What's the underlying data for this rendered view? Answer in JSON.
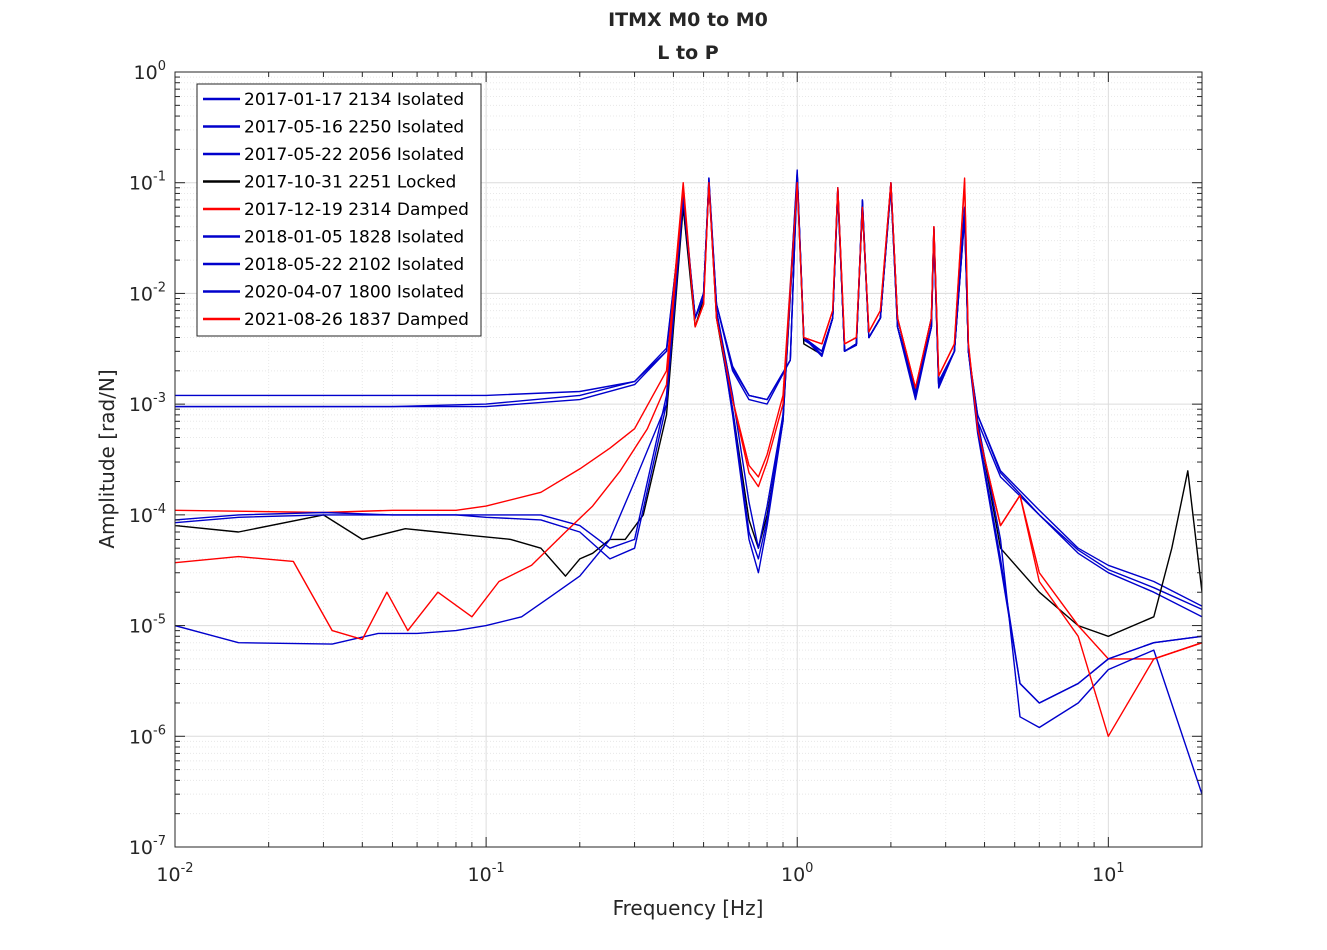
{
  "chart_data": {
    "type": "line",
    "title": "ITMX M0 to M0",
    "subtitle": "L to P",
    "xlabel": "Frequency [Hz]",
    "ylabel": "Amplitude [rad/N]",
    "xscale": "log",
    "yscale": "log",
    "xlim": [
      0.01,
      20
    ],
    "ylim": [
      1e-07,
      1
    ],
    "grid": true,
    "legend_position": "top-left",
    "x_ticks": [
      {
        "base": "10",
        "exp": "-2",
        "value": 0.01
      },
      {
        "base": "10",
        "exp": "-1",
        "value": 0.1
      },
      {
        "base": "10",
        "exp": "0",
        "value": 1
      },
      {
        "base": "10",
        "exp": "1",
        "value": 10
      }
    ],
    "y_ticks": [
      {
        "base": "10",
        "exp": "0",
        "value": 1
      },
      {
        "base": "10",
        "exp": "-1",
        "value": 0.1
      },
      {
        "base": "10",
        "exp": "-2",
        "value": 0.01
      },
      {
        "base": "10",
        "exp": "-3",
        "value": 0.001
      },
      {
        "base": "10",
        "exp": "-4",
        "value": 0.0001
      },
      {
        "base": "10",
        "exp": "-5",
        "value": 1e-05
      },
      {
        "base": "10",
        "exp": "-6",
        "value": 1e-06
      },
      {
        "base": "10",
        "exp": "-7",
        "value": 1e-07
      }
    ],
    "series": [
      {
        "name": "2017-01-17 2134 Isolated",
        "color": "#0000cc",
        "x": [
          0.01,
          0.05,
          0.1,
          0.2,
          0.3,
          0.38,
          0.43,
          0.47,
          0.5,
          0.52,
          0.55,
          0.62,
          0.7,
          0.8,
          0.95,
          1.0,
          1.05,
          1.2,
          1.3,
          1.35,
          1.42,
          1.55,
          1.62,
          1.7,
          1.85,
          2.0,
          2.1,
          2.4,
          2.7,
          2.75,
          2.85,
          3.2,
          3.45,
          3.55,
          3.8,
          4.5,
          6,
          8,
          10,
          14,
          20
        ],
        "y": [
          0.0012,
          0.0012,
          0.0012,
          0.0013,
          0.0016,
          0.003,
          0.06,
          0.006,
          0.01,
          0.1,
          0.008,
          0.0022,
          0.0012,
          0.0011,
          0.0025,
          0.12,
          0.004,
          0.0028,
          0.006,
          0.09,
          0.003,
          0.0035,
          0.07,
          0.004,
          0.006,
          0.1,
          0.006,
          0.00135,
          0.006,
          0.04,
          0.0015,
          0.003,
          0.06,
          0.003,
          0.0008,
          0.00025,
          0.00011,
          5e-05,
          3.5e-05,
          2.5e-05,
          1.5e-05
        ]
      },
      {
        "name": "2017-05-16 2250 Isolated",
        "color": "#0000cc",
        "x": [
          0.01,
          0.05,
          0.1,
          0.2,
          0.3,
          0.38,
          0.43,
          0.47,
          0.5,
          0.52,
          0.55,
          0.62,
          0.7,
          0.8,
          0.95,
          1.0,
          1.05,
          1.2,
          1.3,
          1.35,
          1.42,
          1.55,
          1.62,
          1.7,
          1.85,
          2.0,
          2.1,
          2.4,
          2.7,
          2.75,
          2.85,
          3.2,
          3.45,
          3.55,
          3.8,
          4.5,
          6,
          8,
          10,
          14,
          20
        ],
        "y": [
          0.00095,
          0.00095,
          0.00095,
          0.0011,
          0.0015,
          0.003,
          0.07,
          0.006,
          0.01,
          0.11,
          0.008,
          0.002,
          0.0011,
          0.001,
          0.0025,
          0.12,
          0.0038,
          0.003,
          0.006,
          0.085,
          0.003,
          0.0035,
          0.065,
          0.004,
          0.006,
          0.095,
          0.006,
          0.0012,
          0.006,
          0.035,
          0.0015,
          0.003,
          0.055,
          0.003,
          0.0007,
          0.00022,
          0.0001,
          4.5e-05,
          3e-05,
          2e-05,
          1.2e-05
        ]
      },
      {
        "name": "2017-05-22 2056 Isolated",
        "color": "#0000cc",
        "x": [
          0.01,
          0.05,
          0.1,
          0.2,
          0.3,
          0.38,
          0.43,
          0.47,
          0.5,
          0.52,
          0.55,
          0.62,
          0.7,
          0.8,
          0.95,
          1.0,
          1.05,
          1.2,
          1.3,
          1.35,
          1.42,
          1.55,
          1.62,
          1.7,
          1.85,
          2.0,
          2.1,
          2.4,
          2.7,
          2.75,
          2.85,
          3.2,
          3.45,
          3.55,
          3.8,
          4.5,
          6,
          8,
          10,
          14,
          20
        ],
        "y": [
          0.00095,
          0.00095,
          0.001,
          0.0012,
          0.0016,
          0.0032,
          0.065,
          0.006,
          0.01,
          0.1,
          0.008,
          0.0021,
          0.0012,
          0.0011,
          0.0025,
          0.115,
          0.004,
          0.003,
          0.006,
          0.088,
          0.003,
          0.0035,
          0.068,
          0.004,
          0.006,
          0.098,
          0.006,
          0.0013,
          0.006,
          0.038,
          0.0015,
          0.003,
          0.058,
          0.003,
          0.0008,
          0.00024,
          0.0001,
          4.8e-05,
          3.2e-05,
          2.2e-05,
          1.4e-05
        ]
      },
      {
        "name": "2017-10-31 2251 Locked",
        "color": "#000000",
        "x": [
          0.01,
          0.016,
          0.03,
          0.04,
          0.055,
          0.07,
          0.09,
          0.12,
          0.15,
          0.18,
          0.2,
          0.22,
          0.25,
          0.28,
          0.32,
          0.38,
          0.43,
          0.47,
          0.5,
          0.52,
          0.55,
          0.62,
          0.7,
          0.75,
          0.8,
          0.9,
          1.0,
          1.05,
          1.2,
          1.3,
          1.35,
          1.42,
          1.55,
          1.62,
          1.7,
          1.85,
          2.0,
          2.1,
          2.4,
          2.7,
          2.75,
          2.85,
          3.2,
          3.45,
          3.55,
          3.8,
          4.5,
          6,
          8,
          10,
          14,
          16,
          18,
          20
        ],
        "y": [
          8e-05,
          7e-05,
          0.0001,
          6e-05,
          7.5e-05,
          7e-05,
          6.5e-05,
          6e-05,
          5e-05,
          2.8e-05,
          4e-05,
          4.5e-05,
          6e-05,
          6e-05,
          0.0001,
          0.0008,
          0.06,
          0.005,
          0.009,
          0.1,
          0.006,
          0.0009,
          9e-05,
          5e-05,
          0.0001,
          0.0007,
          0.11,
          0.0035,
          0.0028,
          0.006,
          0.08,
          0.003,
          0.0035,
          0.06,
          0.004,
          0.006,
          0.09,
          0.005,
          0.0012,
          0.005,
          0.035,
          0.0015,
          0.003,
          0.05,
          0.003,
          0.0007,
          5e-05,
          2e-05,
          1e-05,
          8e-06,
          1.2e-05,
          5e-05,
          0.00025,
          2e-05
        ]
      },
      {
        "name": "2017-12-19 2314 Damped",
        "color": "#ff0000",
        "x": [
          0.01,
          0.03,
          0.05,
          0.08,
          0.1,
          0.15,
          0.2,
          0.25,
          0.3,
          0.38,
          0.43,
          0.47,
          0.5,
          0.52,
          0.55,
          0.62,
          0.7,
          0.75,
          0.8,
          0.9,
          1.0,
          1.05,
          1.2,
          1.3,
          1.35,
          1.42,
          1.55,
          1.62,
          1.7,
          1.85,
          2.0,
          2.1,
          2.4,
          2.7,
          2.75,
          2.85,
          3.2,
          3.45,
          3.55,
          3.8,
          4.5,
          5.2,
          6,
          8,
          10,
          14,
          20
        ],
        "y": [
          0.00011,
          0.000105,
          0.00011,
          0.00011,
          0.00012,
          0.00016,
          0.00026,
          0.0004,
          0.0006,
          0.002,
          0.1,
          0.005,
          0.008,
          0.1,
          0.006,
          0.0011,
          0.00028,
          0.00022,
          0.00035,
          0.0012,
          0.11,
          0.004,
          0.0035,
          0.007,
          0.09,
          0.0035,
          0.004,
          0.06,
          0.0045,
          0.007,
          0.1,
          0.006,
          0.0014,
          0.006,
          0.04,
          0.0018,
          0.0035,
          0.1,
          0.0035,
          0.0006,
          8e-05,
          0.00015,
          3e-05,
          1e-05,
          5e-06,
          5e-06,
          7e-06
        ]
      },
      {
        "name": "2018-01-05 1828 Isolated",
        "color": "#0000cc",
        "x": [
          0.01,
          0.016,
          0.03,
          0.05,
          0.08,
          0.1,
          0.15,
          0.2,
          0.25,
          0.3,
          0.38,
          0.43,
          0.47,
          0.5,
          0.52,
          0.55,
          0.62,
          0.7,
          0.75,
          0.8,
          0.9,
          1.0,
          1.05,
          1.2,
          1.3,
          1.35,
          1.42,
          1.55,
          1.62,
          1.7,
          1.85,
          2.0,
          2.1,
          2.4,
          2.7,
          2.75,
          2.85,
          3.2,
          3.45,
          3.55,
          3.8,
          4.5,
          5.2,
          6,
          8,
          10,
          14,
          20
        ],
        "y": [
          8.5e-05,
          9.5e-05,
          0.0001,
          0.0001,
          0.0001,
          0.0001,
          0.0001,
          8e-05,
          5e-05,
          6e-05,
          0.0012,
          0.08,
          0.006,
          0.01,
          0.1,
          0.007,
          0.0009,
          7e-05,
          4e-05,
          9e-05,
          0.0008,
          0.12,
          0.004,
          0.0028,
          0.006,
          0.085,
          0.003,
          0.0035,
          0.065,
          0.004,
          0.006,
          0.095,
          0.005,
          0.0012,
          0.005,
          0.035,
          0.0015,
          0.003,
          0.05,
          0.003,
          0.0006,
          4e-05,
          3e-06,
          2e-06,
          3e-06,
          5e-06,
          7e-06,
          8e-06
        ]
      },
      {
        "name": "2018-05-22 2102 Isolated",
        "color": "#0000cc",
        "x": [
          0.01,
          0.016,
          0.03,
          0.05,
          0.08,
          0.1,
          0.15,
          0.2,
          0.25,
          0.3,
          0.38,
          0.43,
          0.47,
          0.5,
          0.52,
          0.55,
          0.62,
          0.7,
          0.75,
          0.8,
          0.9,
          1.0,
          1.05,
          1.2,
          1.3,
          1.35,
          1.42,
          1.55,
          1.62,
          1.7,
          1.85,
          2.0,
          2.1,
          2.4,
          2.7,
          2.75,
          2.85,
          3.2,
          3.45,
          3.55,
          3.8,
          4.5,
          5.2,
          6,
          8,
          10,
          14,
          20
        ],
        "y": [
          9e-05,
          0.0001,
          0.000105,
          0.0001,
          0.0001,
          9.5e-05,
          9e-05,
          7e-05,
          4e-05,
          5e-05,
          0.001,
          0.075,
          0.006,
          0.01,
          0.1,
          0.007,
          0.0008,
          6e-05,
          3e-05,
          8e-05,
          0.0007,
          0.11,
          0.004,
          0.0027,
          0.006,
          0.08,
          0.003,
          0.0034,
          0.06,
          0.004,
          0.006,
          0.09,
          0.005,
          0.0011,
          0.005,
          0.033,
          0.0014,
          0.003,
          0.048,
          0.003,
          0.00055,
          3.5e-05,
          3e-06,
          2e-06,
          3e-06,
          5e-06,
          7e-06,
          8e-06
        ]
      },
      {
        "name": "2020-04-07 1800 Isolated",
        "color": "#0000cc",
        "x": [
          0.01,
          0.016,
          0.032,
          0.045,
          0.06,
          0.08,
          0.1,
          0.13,
          0.16,
          0.2,
          0.25,
          0.3,
          0.38,
          0.43,
          0.47,
          0.5,
          0.52,
          0.55,
          0.62,
          0.7,
          0.75,
          0.8,
          0.9,
          1.0,
          1.05,
          1.2,
          1.3,
          1.35,
          1.42,
          1.55,
          1.62,
          1.7,
          1.85,
          2.0,
          2.1,
          2.4,
          2.7,
          2.75,
          2.85,
          3.2,
          3.45,
          3.55,
          3.8,
          4.5,
          5.2,
          6,
          8,
          10,
          14,
          20
        ],
        "y": [
          1e-05,
          7e-06,
          6.8e-06,
          8.5e-06,
          8.5e-06,
          9e-06,
          1e-05,
          1.2e-05,
          1.8e-05,
          2.8e-05,
          6e-05,
          0.0002,
          0.001,
          0.07,
          0.006,
          0.009,
          0.11,
          0.007,
          0.0012,
          0.00013,
          5e-05,
          0.00012,
          0.0008,
          0.13,
          0.004,
          0.003,
          0.006,
          0.09,
          0.003,
          0.0035,
          0.07,
          0.004,
          0.006,
          0.1,
          0.005,
          0.0013,
          0.005,
          0.038,
          0.0016,
          0.003,
          0.06,
          0.003,
          0.0007,
          6e-05,
          1.5e-06,
          1.2e-06,
          2e-06,
          4e-06,
          6e-06,
          3e-07
        ]
      },
      {
        "name": "2021-08-26 1837 Damped",
        "color": "#ff0000",
        "x": [
          0.01,
          0.016,
          0.024,
          0.032,
          0.04,
          0.048,
          0.056,
          0.07,
          0.09,
          0.11,
          0.14,
          0.18,
          0.22,
          0.27,
          0.33,
          0.38,
          0.43,
          0.47,
          0.5,
          0.52,
          0.55,
          0.62,
          0.7,
          0.75,
          0.8,
          0.9,
          1.0,
          1.05,
          1.2,
          1.3,
          1.35,
          1.42,
          1.55,
          1.62,
          1.7,
          1.85,
          2.0,
          2.1,
          2.4,
          2.7,
          2.75,
          2.85,
          3.2,
          3.45,
          3.55,
          3.8,
          4.5,
          5.2,
          6,
          8,
          10,
          14,
          20
        ],
        "y": [
          3.7e-05,
          4.2e-05,
          3.8e-05,
          9e-06,
          7.5e-06,
          2e-05,
          9e-06,
          2e-05,
          1.2e-05,
          2.5e-05,
          3.5e-05,
          7e-05,
          0.00012,
          0.00025,
          0.0006,
          0.0015,
          0.09,
          0.005,
          0.008,
          0.1,
          0.006,
          0.0011,
          0.00024,
          0.00018,
          0.0003,
          0.001,
          0.1,
          0.004,
          0.0035,
          0.007,
          0.09,
          0.0035,
          0.004,
          0.06,
          0.0045,
          0.007,
          0.1,
          0.006,
          0.0014,
          0.006,
          0.04,
          0.0018,
          0.0035,
          0.11,
          0.0035,
          0.0006,
          8e-05,
          0.00015,
          2.5e-05,
          8e-06,
          1e-06,
          5e-06,
          7e-06
        ]
      }
    ]
  }
}
